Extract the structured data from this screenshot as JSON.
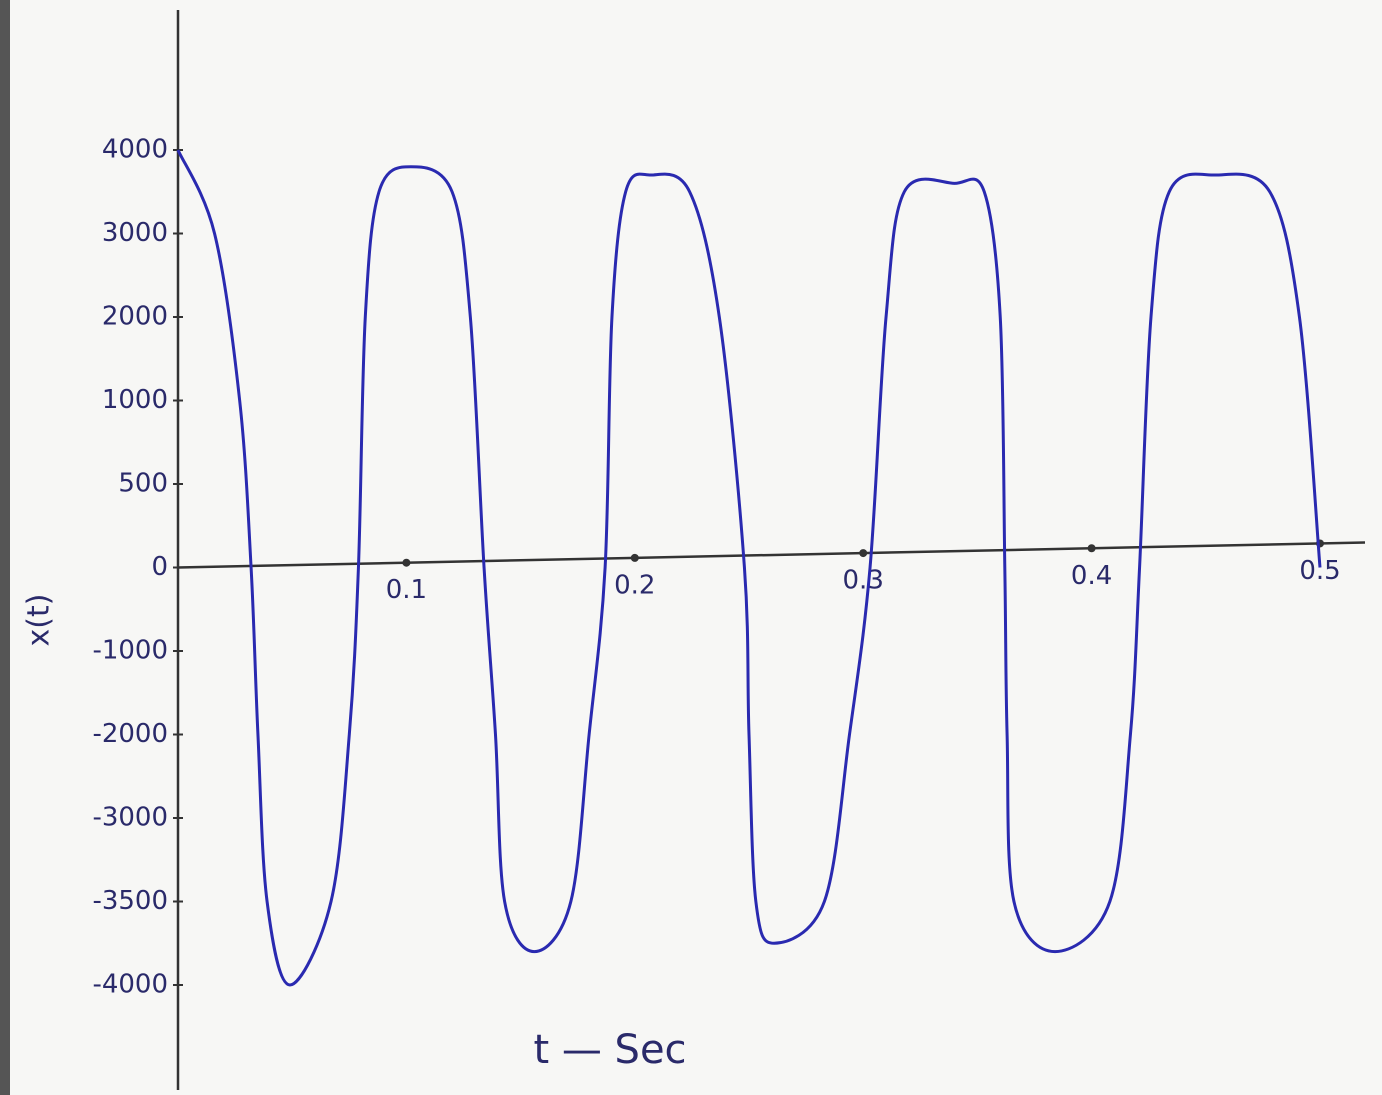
{
  "chart_data": {
    "type": "line",
    "x_label": "t — Sec",
    "y_label": "x(t)",
    "xlim": [
      0,
      0.5
    ],
    "xticks": [
      0.1,
      0.2,
      0.3,
      0.4,
      0.5
    ],
    "yticks": [
      4000,
      3000,
      2000,
      1000,
      500,
      0,
      -1000,
      -2000,
      -3000,
      -3500,
      -4000
    ],
    "grid": false,
    "series": [
      {
        "color": "#2a2ab0",
        "x": [
          0,
          0.016,
          0.027,
          0.032,
          0.035,
          0.039,
          0.049,
          0.067,
          0.075,
          0.079,
          0.082,
          0.088,
          0.102,
          0.12,
          0.128,
          0.134,
          0.139,
          0.143,
          0.156,
          0.172,
          0.18,
          0.187,
          0.19,
          0.196,
          0.207,
          0.224,
          0.237,
          0.248,
          0.25,
          0.253,
          0.261,
          0.283,
          0.294,
          0.303,
          0.31,
          0.318,
          0.34,
          0.353,
          0.36,
          0.362,
          0.363,
          0.366,
          0.384,
          0.408,
          0.417,
          0.421,
          0.426,
          0.434,
          0.454,
          0.478,
          0.491,
          0.5
        ],
        "values": [
          4000,
          3000,
          1000,
          0,
          -2000,
          -3500,
          -4000,
          -3500,
          -2000,
          0,
          2000,
          3500,
          3800,
          3500,
          2000,
          0,
          -2000,
          -3500,
          -3800,
          -3500,
          -2000,
          0,
          2000,
          3500,
          3700,
          3500,
          2000,
          0,
          -2000,
          -3500,
          -3750,
          -3500,
          -2000,
          0,
          2000,
          3500,
          3600,
          3500,
          2000,
          0,
          -2000,
          -3500,
          -3800,
          -3500,
          -2000,
          0,
          2000,
          3500,
          3700,
          3500,
          2000,
          0
        ]
      }
    ]
  }
}
